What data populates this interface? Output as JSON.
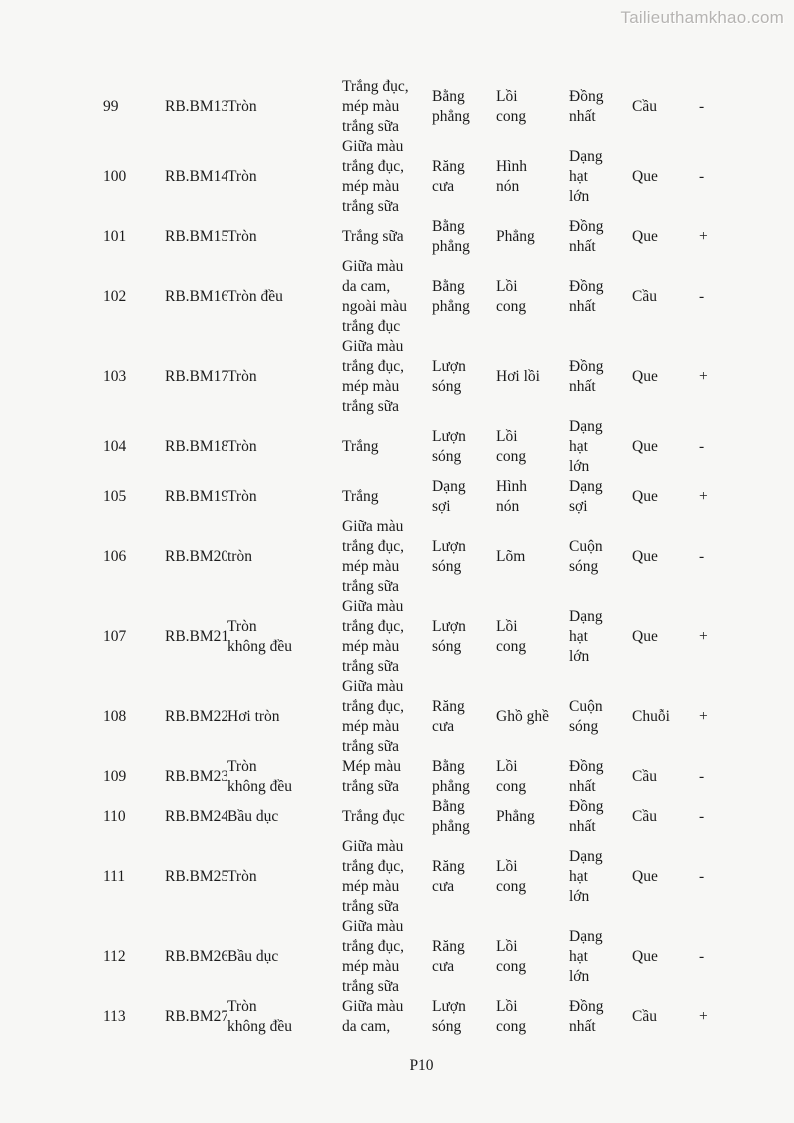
{
  "page": {
    "watermark": "Tailieuthamkhao.com",
    "page_number": "P10"
  },
  "table": {
    "columns": [
      "stt",
      "id",
      "shape",
      "color",
      "edge",
      "surface",
      "structure",
      "cell_shape",
      "gram"
    ],
    "rows": [
      {
        "stt": "99",
        "id": "RB.BM13",
        "shape": "Tròn",
        "color": "Trắng đục,\nmép màu\ntrắng sữa",
        "edge": "Bằng\nphẳng",
        "surface": "Lồi\ncong",
        "structure": "Đồng\nnhất",
        "cell_shape": "Cầu",
        "gram": "-"
      },
      {
        "stt": "100",
        "id": "RB.BM14",
        "shape": "Tròn",
        "color": "Giữa màu\ntrắng đục,\nmép màu\ntrắng sữa",
        "edge": "Răng\ncưa",
        "surface": "Hình\nnón",
        "structure": "Dạng\nhạt\nlớn",
        "cell_shape": "Que",
        "gram": "-"
      },
      {
        "stt": "101",
        "id": "RB.BM15",
        "shape": "Tròn",
        "color": "Trắng sữa",
        "edge": "Bằng\nphẳng",
        "surface": "Phẳng",
        "structure": "Đồng\nnhất",
        "cell_shape": "Que",
        "gram": "+"
      },
      {
        "stt": "102",
        "id": "RB.BM16",
        "shape": "Tròn đều",
        "color": "Giữa màu\nda cam,\nngoài màu\ntrắng đục",
        "edge": "Bằng\nphẳng",
        "surface": "Lồi\ncong",
        "structure": "Đồng\nnhất",
        "cell_shape": "Cầu",
        "gram": "-"
      },
      {
        "stt": "103",
        "id": "RB.BM17",
        "shape": "Tròn",
        "color": "Giữa màu\ntrắng đục,\nmép màu\ntrắng sữa",
        "edge": "Lượn\nsóng",
        "surface": "Hơi lồi",
        "structure": "Đồng\nnhất",
        "cell_shape": "Que",
        "gram": "+"
      },
      {
        "stt": "104",
        "id": "RB.BM18",
        "shape": "Tròn",
        "color": "Trắng",
        "edge": "Lượn\nsóng",
        "surface": "Lồi\ncong",
        "structure": "Dạng\nhạt\nlớn",
        "cell_shape": "Que",
        "gram": "-"
      },
      {
        "stt": "105",
        "id": "RB.BM19",
        "shape": "Tròn",
        "color": "Trắng",
        "edge": "Dạng\nsợi",
        "surface": "Hình\nnón",
        "structure": "Dạng\nsợi",
        "cell_shape": "Que",
        "gram": "+"
      },
      {
        "stt": "106",
        "id": "RB.BM20",
        "shape": "tròn",
        "color": "Giữa màu\ntrắng đục,\nmép màu\ntrắng sữa",
        "edge": "Lượn\nsóng",
        "surface": "Lõm",
        "structure": "Cuộn\nsóng",
        "cell_shape": "Que",
        "gram": "-"
      },
      {
        "stt": "107",
        "id": "RB.BM21",
        "shape": "Tròn\nkhông đều",
        "color": "Giữa màu\ntrắng đục,\nmép màu\ntrắng sữa",
        "edge": "Lượn\nsóng",
        "surface": "Lồi\ncong",
        "structure": "Dạng\nhạt\nlớn",
        "cell_shape": "Que",
        "gram": "+"
      },
      {
        "stt": "108",
        "id": "RB.BM22",
        "shape": "Hơi tròn",
        "color": "Giữa màu\ntrắng đục,\nmép màu\ntrắng sữa",
        "edge": "Răng\ncưa",
        "surface": "Ghồ ghề",
        "structure": "Cuộn\nsóng",
        "cell_shape": "Chuỗi",
        "gram": "+"
      },
      {
        "stt": "109",
        "id": "RB.BM23",
        "shape": "Tròn\nkhông đều",
        "color": "Mép màu\ntrắng sữa",
        "edge": "Bằng\nphẳng",
        "surface": "Lồi\ncong",
        "structure": "Đồng\nnhất",
        "cell_shape": "Cầu",
        "gram": "-"
      },
      {
        "stt": "110",
        "id": "RB.BM24",
        "shape": "Bầu dục",
        "color": "Trắng đục",
        "edge": "Bằng\nphẳng",
        "surface": "Phẳng",
        "structure": "Đồng\nnhất",
        "cell_shape": "Cầu",
        "gram": "-"
      },
      {
        "stt": "111",
        "id": "RB.BM25",
        "shape": "Tròn",
        "color": "Giữa màu\ntrắng đục,\nmép màu\ntrắng sữa",
        "edge": "Răng\ncưa",
        "surface": "Lồi\ncong",
        "structure": "Dạng\nhạt\nlớn",
        "cell_shape": "Que",
        "gram": "-"
      },
      {
        "stt": "112",
        "id": "RB.BM26",
        "shape": "Bầu dục",
        "color": "Giữa màu\ntrắng đục,\nmép màu\ntrắng sữa",
        "edge": "Răng\ncưa",
        "surface": "Lồi\ncong",
        "structure": "Dạng\nhạt\nlớn",
        "cell_shape": "Que",
        "gram": "-"
      },
      {
        "stt": "113",
        "id": "RB.BM27",
        "shape": "Tròn\nkhông đều",
        "color": "Giữa màu\nda cam,",
        "edge": "Lượn\nsóng",
        "surface": "Lồi\ncong",
        "structure": "Đồng\nnhất",
        "cell_shape": "Cầu",
        "gram": "+"
      }
    ]
  }
}
